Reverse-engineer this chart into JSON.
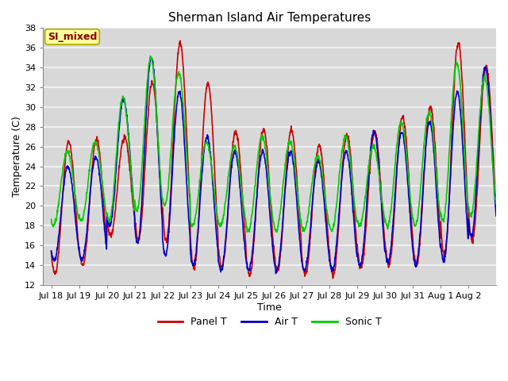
{
  "title": "Sherman Island Air Temperatures",
  "xlabel": "Time",
  "ylabel": "Temperature (C)",
  "ylim": [
    12,
    38
  ],
  "yticks": [
    12,
    14,
    16,
    18,
    20,
    22,
    24,
    26,
    28,
    30,
    32,
    34,
    36,
    38
  ],
  "fig_bg_color": "#ffffff",
  "plot_bg_color": "#d8d8d8",
  "grid_color": "#f0f0f0",
  "line_colors": {
    "panel": "#cc0000",
    "air": "#0000cc",
    "sonic": "#00cc00"
  },
  "line_width": 1.2,
  "annotation_text": "SI_mixed",
  "annotation_bg": "#ffff99",
  "annotation_fg": "#880000",
  "xtick_labels": [
    "Jul 18",
    "Jul 19",
    "Jul 20",
    "Jul 21",
    "Jul 22",
    "Jul 23",
    "Jul 24",
    "Jul 25",
    "Jul 26",
    "Jul 27",
    "Jul 28",
    "Jul 29",
    "Jul 30",
    "Jul 31",
    "Aug 1",
    "Aug 2"
  ],
  "legend_entries": [
    "Panel T",
    "Air T",
    "Sonic T"
  ],
  "title_fontsize": 11,
  "axis_fontsize": 9,
  "tick_fontsize": 8,
  "panel_peaks": [
    26.5,
    26.8,
    27.0,
    32.5,
    36.5,
    32.5,
    27.5,
    27.8,
    27.7,
    26.1,
    27.3,
    27.5,
    29.0,
    30.0,
    36.5,
    34.0
  ],
  "panel_troughs": [
    13.2,
    14.0,
    17.0,
    16.5,
    16.5,
    13.8,
    13.8,
    13.0,
    13.5,
    13.0,
    13.0,
    13.8,
    14.0,
    14.0,
    15.0,
    16.5
  ],
  "air_peaks": [
    24.0,
    25.0,
    30.8,
    35.0,
    31.5,
    27.0,
    25.5,
    25.5,
    25.5,
    24.5,
    25.5,
    27.5,
    27.5,
    28.5,
    31.5,
    34.0
  ],
  "air_troughs": [
    14.5,
    14.5,
    18.0,
    16.3,
    15.0,
    14.0,
    13.5,
    13.5,
    13.5,
    13.5,
    13.5,
    14.0,
    14.3,
    14.0,
    14.5,
    17.0
  ],
  "sonic_peaks": [
    25.5,
    26.5,
    31.0,
    35.0,
    33.5,
    26.5,
    26.0,
    27.0,
    26.5,
    25.0,
    27.0,
    26.0,
    28.5,
    29.5,
    34.5,
    33.0
  ],
  "sonic_troughs": [
    18.0,
    18.5,
    18.5,
    19.5,
    20.0,
    18.0,
    18.0,
    17.5,
    17.5,
    17.5,
    17.5,
    18.0,
    18.0,
    18.0,
    18.5,
    19.0
  ]
}
